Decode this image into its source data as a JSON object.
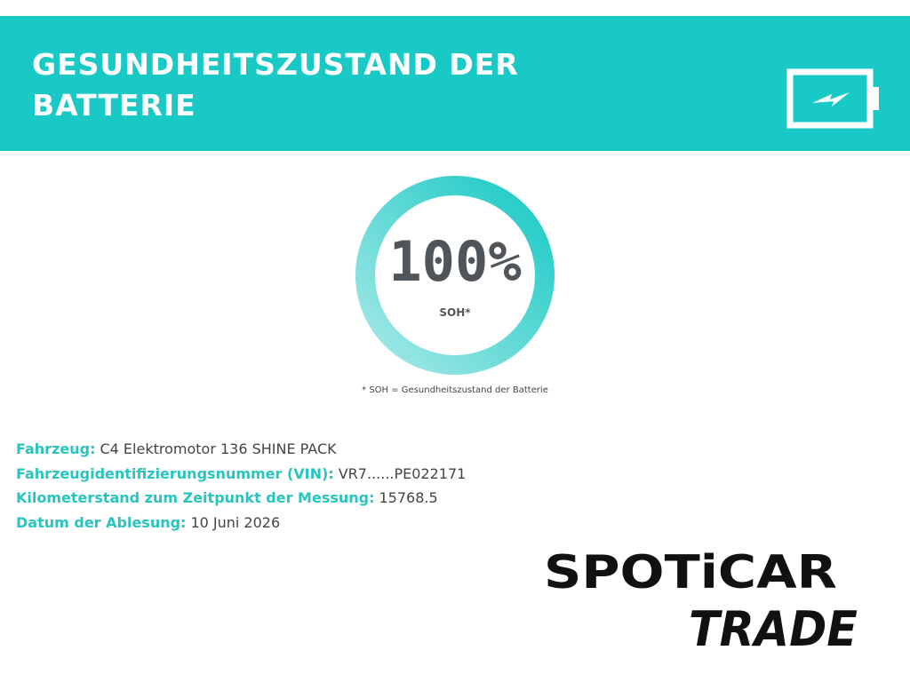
{
  "header": {
    "title": "GESUNDHEITSZUSTAND DER BATTERIE"
  },
  "gauge": {
    "value": "100%",
    "label": "SOH*",
    "footnote": "* SOH = Gesundheitszustand der Batterie"
  },
  "details": [
    {
      "label": "Fahrzeug:",
      "value": "C4 Elektromotor 136 SHINE PACK"
    },
    {
      "label": "Fahrzeugidentifizierungsnummer (VIN):",
      "value": "VR7......PE022171"
    },
    {
      "label": "Kilometerstand zum Zeitpunkt der Messung:",
      "value": "15768.5"
    },
    {
      "label": "Datum der Ablesung:",
      "value": "10 Juni 2026"
    }
  ],
  "logo": {
    "brand": "SPOTiCAR",
    "sub": "TRADE"
  }
}
